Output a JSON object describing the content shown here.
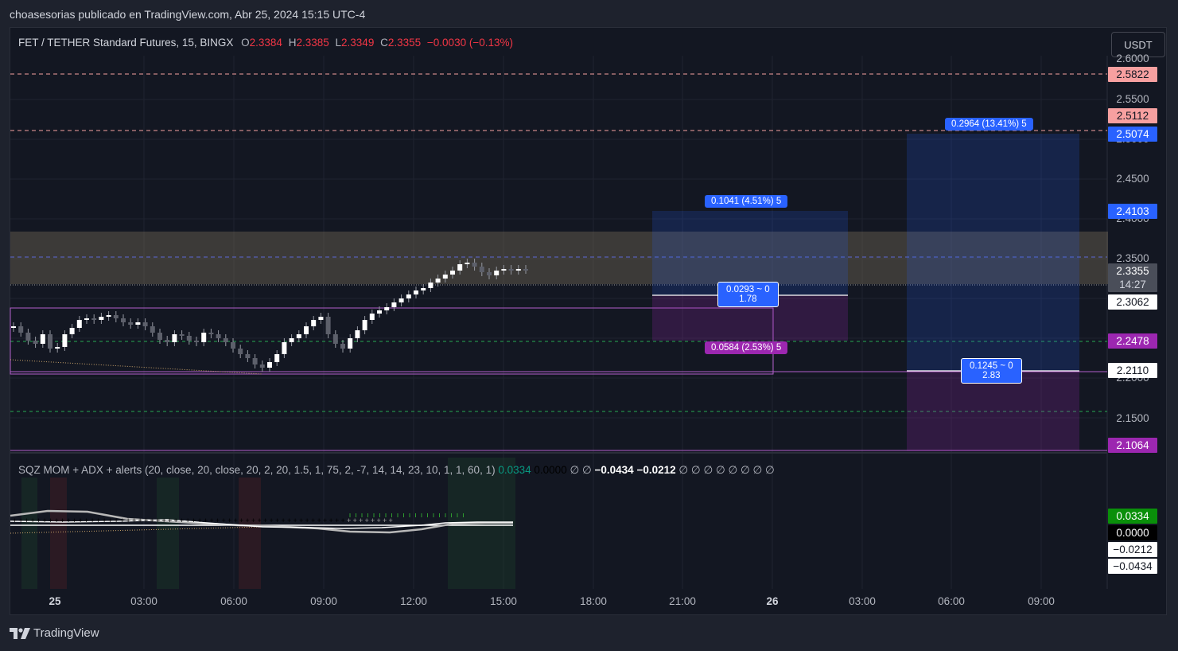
{
  "header": {
    "text": "choasesorias publicado en TradingView.com, Abr 25, 2024 15:15 UTC-4"
  },
  "legend": {
    "symbol": "FET / TETHER Standard Futures, 15, BINGX",
    "o_label": "O",
    "o": "2.3384",
    "h_label": "H",
    "h": "2.3385",
    "l_label": "L",
    "l": "2.3349",
    "c_label": "C",
    "c": "2.3355",
    "change": "−0.0030 (−0.13%)"
  },
  "currency_button": "USDT",
  "price_axis": {
    "ticks": [
      "2.6000",
      "2.5500",
      "2.5000",
      "2.4500",
      "2.4000",
      "2.3500",
      "2.2000",
      "2.1500"
    ],
    "labels": {
      "l25822": "2.5822",
      "l25112": "2.5112",
      "l25074": "2.5074",
      "l24103": "2.4103",
      "last": "2.3355",
      "countdown": "14:27",
      "l23062": "2.3062",
      "l22478": "2.2478",
      "l22110": "2.2110",
      "l21064": "2.1064"
    },
    "colors": {
      "red_label": "#f7a0a0",
      "blue_label": "#2962ff",
      "purple_label": "#9c27b0",
      "last_label": "#4a4e59"
    }
  },
  "time_axis": [
    "25",
    "03:00",
    "06:00",
    "09:00",
    "12:00",
    "15:00",
    "18:00",
    "21:00",
    "26",
    "03:00",
    "06:00",
    "09:00"
  ],
  "positions": {
    "pos1_target": "0.1041 (4.51%) 5",
    "pos1_entry_l1": "0.0293 ~ 0",
    "pos1_entry_l2": "1.78",
    "pos1_stop": "0.0584 (2.53%) 5",
    "pos2_target": "0.2964 (13.41%) 5",
    "pos2_entry_l1": "0.1245 ~ 0",
    "pos2_entry_l2": "2.83"
  },
  "indicator": {
    "title": "SQZ MOM + ADX + alerts (20, close, 20, close, 20, 2, 20, 1.5, 1, 75, 2, -7, 14, 14, 23, 10, 1, 1, 60, 1)",
    "v1": "0.0334",
    "v2": "0.0000",
    "phi": "∅ ∅",
    "v3": "−0.0434",
    "v4": "−0.0212",
    "phi_tail": "∅ ∅ ∅ ∅ ∅ ∅ ∅ ∅",
    "axis": {
      "a1": "0.0334",
      "a2": "0.0000",
      "a3": "−0.0212",
      "a4": "−0.0434"
    }
  },
  "footer": {
    "brand": "TradingView",
    "logo": "tradingview-logo"
  }
}
